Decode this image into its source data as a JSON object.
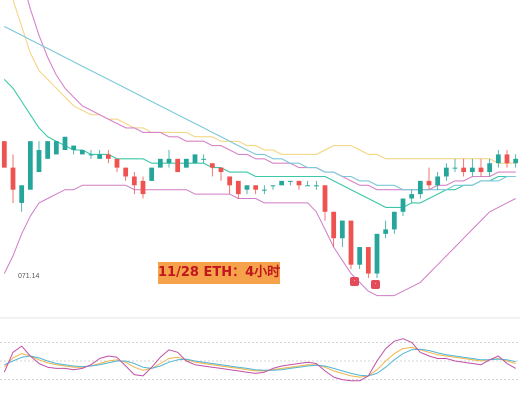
{
  "caption": "11/28 ETH：4小时",
  "low_label": "071.14",
  "markers": [
    "·",
    "·"
  ],
  "colors": {
    "up": "#26a69a",
    "down": "#ef5350",
    "ma_short": "#f7c648",
    "ma_mid": "#3bc7a8",
    "ma_long": "#7cc8d8",
    "boll": "#d07cc6",
    "osc_k": "#f0b44a",
    "osc_d": "#4fb6d6",
    "osc_j": "#c04fa8",
    "caption_bg": "#f5a24a",
    "caption_text": "#c0161d"
  },
  "chart_data": {
    "type": "candlestick",
    "title": "",
    "candles": [
      [
        8,
        8,
        2,
        2
      ],
      [
        2,
        5,
        -3,
        -6
      ],
      [
        -6,
        -8,
        -2,
        -3
      ],
      [
        -3,
        -2,
        8,
        1
      ],
      [
        1,
        8,
        6,
        4
      ],
      [
        4,
        7,
        8,
        5
      ],
      [
        5,
        6,
        8,
        6
      ],
      [
        6,
        6,
        9,
        6
      ],
      [
        6,
        6,
        7,
        5
      ],
      [
        5,
        6,
        6,
        5
      ],
      [
        5,
        6,
        5,
        4
      ],
      [
        4,
        6,
        5,
        4
      ],
      [
        5,
        6,
        4,
        3
      ],
      [
        4,
        4,
        2,
        1
      ],
      [
        2,
        2,
        0,
        -1
      ],
      [
        0,
        1,
        -2,
        -4
      ],
      [
        -1,
        0,
        -4,
        -5
      ],
      [
        -1,
        -1,
        2,
        1
      ],
      [
        2,
        3,
        4,
        2
      ],
      [
        3,
        6,
        4,
        2
      ],
      [
        4,
        4,
        1,
        1
      ],
      [
        2,
        3,
        4,
        2
      ],
      [
        3,
        4,
        5,
        3
      ],
      [
        4,
        5,
        4,
        3
      ],
      [
        3,
        3,
        2,
        0
      ],
      [
        2,
        1,
        1,
        -1
      ],
      [
        0,
        -1,
        -2,
        -4
      ],
      [
        -1,
        -2,
        -4,
        -5
      ],
      [
        -3,
        -3,
        -2,
        -4
      ],
      [
        -2,
        -2,
        -3,
        -4
      ],
      [
        -3,
        -2,
        -3,
        -4
      ],
      [
        -2,
        -2,
        -2,
        -3
      ],
      [
        -2,
        -1,
        -1,
        -2
      ],
      [
        -1,
        -1,
        -1,
        -2
      ],
      [
        -1,
        -1,
        -2,
        -3
      ],
      [
        -2,
        -1,
        -2,
        -2
      ],
      [
        -2,
        -1,
        -2,
        -3
      ],
      [
        -2,
        -3,
        -8,
        -10
      ],
      [
        -8,
        -9,
        -14,
        -16
      ],
      [
        -14,
        -14,
        -10,
        -16
      ],
      [
        -10,
        -11,
        -20,
        -21
      ],
      [
        -20,
        -19,
        -16,
        -21
      ],
      [
        -16,
        -16,
        -22,
        -23
      ],
      [
        -22,
        -19,
        -13,
        -23
      ],
      [
        -13,
        -10,
        -12,
        -14
      ],
      [
        -12,
        -9,
        -8,
        -13
      ],
      [
        -8,
        -6,
        -5,
        -9
      ],
      [
        -5,
        -3,
        -4,
        -6
      ],
      [
        -4,
        -2,
        -1,
        -5
      ],
      [
        -1,
        2,
        -2,
        -3
      ],
      [
        -2,
        1,
        0,
        -3
      ],
      [
        0,
        3,
        2,
        -1
      ],
      [
        2,
        4,
        2,
        1
      ],
      [
        2,
        4,
        1,
        0
      ],
      [
        1,
        4,
        2,
        0
      ],
      [
        2,
        4,
        1,
        0
      ],
      [
        1,
        4,
        3,
        0
      ],
      [
        3,
        6,
        5,
        2
      ],
      [
        5,
        6,
        3,
        2
      ],
      [
        3,
        5,
        4,
        2
      ]
    ],
    "ylim": [
      -28,
      40
    ],
    "moving_averages": [
      {
        "values": [
          62,
          55,
          45,
          38,
          32,
          27,
          23,
          20,
          18,
          16,
          15,
          14,
          13,
          12,
          11,
          11,
          10,
          10,
          10,
          9,
          9,
          8,
          8,
          8,
          7,
          7,
          6,
          5,
          5,
          4,
          4,
          3,
          3,
          3,
          2,
          2,
          2,
          1,
          1,
          0,
          -1,
          -2,
          -2,
          -3,
          -3,
          -3,
          -3,
          -3,
          -3,
          -3,
          -2,
          -2,
          -1,
          -1,
          0,
          0,
          0,
          1,
          1,
          1
        ]
      },
      {
        "values": [
          22,
          20,
          17,
          14,
          11,
          9,
          8,
          7,
          6,
          6,
          5,
          5,
          5,
          4,
          4,
          4,
          4,
          3,
          3,
          3,
          3,
          3,
          3,
          3,
          2,
          2,
          1,
          1,
          1,
          0,
          0,
          0,
          0,
          0,
          0,
          0,
          0,
          0,
          -1,
          -2,
          -3,
          -4,
          -5,
          -6,
          -7,
          -7,
          -7,
          -6,
          -6,
          -5,
          -4,
          -3,
          -3,
          -2,
          -2,
          -1,
          -1,
          0,
          0,
          0
        ]
      },
      {
        "values": [
          34,
          33,
          32,
          31,
          30,
          29,
          28,
          27,
          26,
          25,
          24,
          23,
          22,
          21,
          20,
          19,
          18,
          17,
          16,
          15,
          14,
          13,
          12,
          11,
          10,
          9,
          8,
          7,
          6,
          5,
          5,
          4,
          4,
          3,
          3,
          2,
          2,
          1,
          1,
          0,
          0,
          -1,
          -1,
          -2,
          -2,
          -2,
          -3,
          -3,
          -3,
          -3,
          -3,
          -3,
          -2,
          -2,
          -2,
          -1,
          -1,
          -1,
          0,
          0
        ]
      }
    ],
    "bollinger": {
      "upper": [
        44,
        40,
        34,
        28,
        24,
        22,
        20,
        18,
        16,
        15,
        14,
        14,
        13,
        13,
        12,
        11,
        11,
        10,
        10,
        10,
        10,
        10,
        9,
        9,
        9,
        8,
        8,
        8,
        7,
        7,
        6,
        6,
        5,
        5,
        5,
        5,
        5,
        6,
        7,
        7,
        7,
        6,
        5,
        5,
        4,
        4,
        4,
        4,
        4,
        4,
        4,
        4,
        4,
        4,
        4,
        4,
        4,
        3,
        3,
        3
      ],
      "lower": [
        -22,
        -18,
        -13,
        -9,
        -6,
        -5,
        -4,
        -3,
        -3,
        -2,
        -2,
        -2,
        -2,
        -2,
        -2,
        -3,
        -3,
        -3,
        -3,
        -3,
        -3,
        -3,
        -4,
        -4,
        -4,
        -4,
        -4,
        -5,
        -5,
        -5,
        -6,
        -6,
        -6,
        -6,
        -6,
        -6,
        -8,
        -12,
        -16,
        -19,
        -22,
        -24,
        -26,
        -27,
        -27,
        -27,
        -26,
        -25,
        -24,
        -22,
        -20,
        -18,
        -16,
        -14,
        -12,
        -10,
        -8,
        -7,
        -6,
        -5
      ]
    },
    "oscillator": {
      "k": [
        40,
        55,
        62,
        58,
        52,
        47,
        44,
        42,
        40,
        40,
        42,
        46,
        50,
        52,
        48,
        40,
        35,
        38,
        46,
        54,
        56,
        52,
        48,
        46,
        44,
        42,
        40,
        38,
        36,
        34,
        34,
        36,
        38,
        40,
        42,
        44,
        44,
        40,
        34,
        30,
        26,
        24,
        26,
        36,
        50,
        62,
        70,
        72,
        68,
        64,
        60,
        58,
        56,
        54,
        52,
        50,
        52,
        54,
        50,
        46
      ],
      "d": [
        44,
        50,
        56,
        58,
        55,
        50,
        46,
        44,
        42,
        41,
        42,
        44,
        47,
        50,
        50,
        46,
        40,
        38,
        42,
        48,
        52,
        53,
        50,
        48,
        46,
        44,
        42,
        40,
        38,
        36,
        35,
        35,
        36,
        38,
        40,
        42,
        43,
        42,
        38,
        34,
        30,
        27,
        26,
        30,
        40,
        52,
        62,
        68,
        69,
        67,
        63,
        60,
        58,
        56,
        54,
        52,
        52,
        53,
        52,
        49
      ],
      "j": [
        32,
        64,
        74,
        58,
        46,
        40,
        38,
        38,
        36,
        38,
        44,
        54,
        58,
        56,
        42,
        28,
        26,
        40,
        56,
        68,
        64,
        50,
        44,
        42,
        40,
        38,
        36,
        34,
        32,
        30,
        32,
        38,
        42,
        44,
        46,
        48,
        46,
        34,
        24,
        20,
        18,
        18,
        26,
        50,
        70,
        82,
        86,
        80,
        64,
        58,
        54,
        54,
        50,
        48,
        46,
        44,
        52,
        58,
        46,
        38
      ],
      "ylim": [
        0,
        100
      ]
    }
  }
}
